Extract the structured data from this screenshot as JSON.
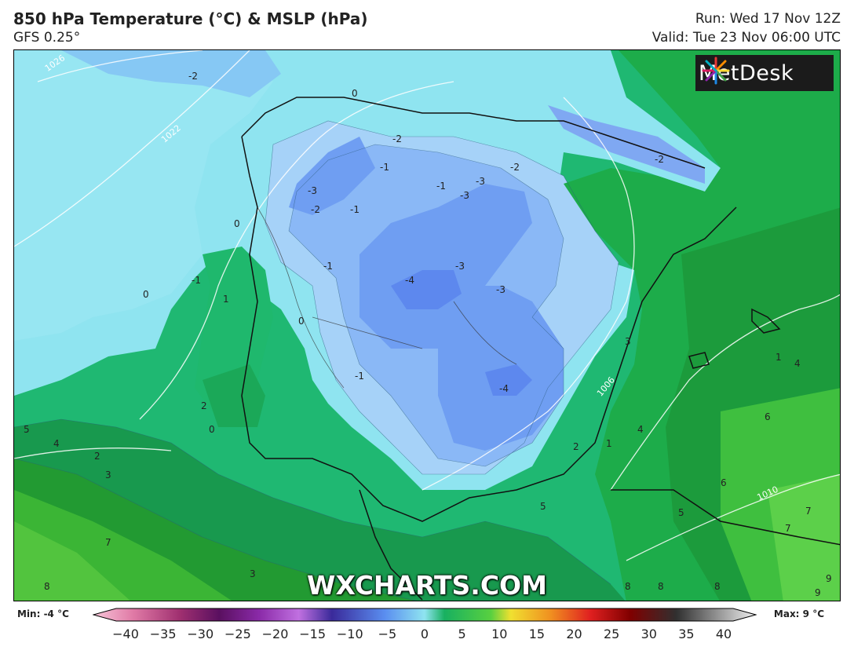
{
  "header": {
    "title": "850 hPa Temperature (°C) & MSLP (hPa)",
    "model": "GFS 0.25°",
    "run": "Run: Wed 17 Nov 12Z",
    "valid": "Valid: Tue 23 Nov 06:00 UTC"
  },
  "logo": {
    "text": "MetDesk",
    "icon": "metdesk-star-icon"
  },
  "watermark": "WXCHARTS.COM",
  "colorbar": {
    "min_label": "Min: -4 °C",
    "max_label": "Max: 9 °C",
    "ticks": [
      "−40",
      "−35",
      "−30",
      "−25",
      "−20",
      "−15",
      "−10",
      "−5",
      "0",
      "5",
      "10",
      "15",
      "20",
      "25",
      "30",
      "35",
      "40"
    ]
  },
  "map": {
    "isobar_labels": [
      "1026",
      "1022",
      "1006",
      "1010"
    ],
    "temp_labels": [
      "-2",
      "0",
      "-1",
      "-2",
      "-3",
      "-2",
      "-1",
      "-3",
      "-3",
      "-2",
      "-2",
      "0",
      "-1",
      "-4",
      "-3",
      "-3",
      "-1",
      "0",
      "1",
      "0",
      "-1",
      "-4",
      "3",
      "2",
      "1",
      "2",
      "0",
      "5",
      "4",
      "2",
      "3",
      "7",
      "8",
      "3",
      "5",
      "8",
      "8",
      "8",
      "6",
      "5",
      "7",
      "7",
      "4",
      "4",
      "6",
      "9",
      "9",
      "-2",
      "1",
      "-1"
    ],
    "colors": {
      "sea_light": "#8fe4f0",
      "cold_blue": "#7fb0f5",
      "coldest": "#5f8ef0",
      "green": "#1fb56a",
      "green_dark": "#1c9a3a",
      "green_light": "#58d058"
    }
  }
}
